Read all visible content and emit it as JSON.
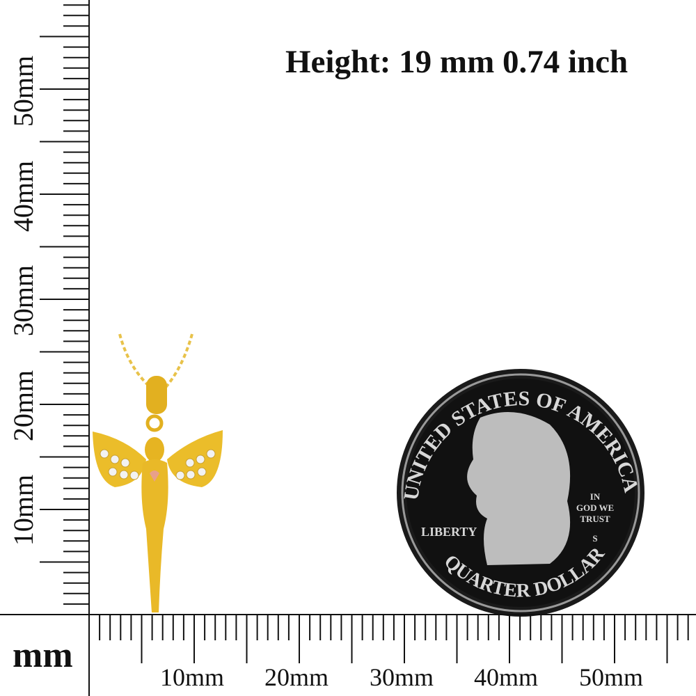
{
  "title": "Height: 19 mm 0.74 inch",
  "unit_label": "mm",
  "vertical_ruler": {
    "labels": [
      "10mm",
      "20mm",
      "30mm",
      "40mm",
      "50mm"
    ],
    "max_mm": 58
  },
  "horizontal_ruler": {
    "labels": [
      "10mm",
      "20mm",
      "30mm",
      "40mm",
      "50mm"
    ],
    "max_mm": 57
  },
  "coin": {
    "top_text": "UNITED STATES OF AMERICA",
    "left_text": "LIBERTY",
    "motto": [
      "IN",
      "GOD WE",
      "TRUST"
    ],
    "mint_mark": "S",
    "bottom_text": "QUARTER DOLLAR"
  },
  "colors": {
    "ink": "#111111",
    "gold": "#e8b825",
    "rose": "#e8a08a",
    "coin_rim": "#1a1a1a",
    "coin_silver": "#c8c8c8"
  }
}
